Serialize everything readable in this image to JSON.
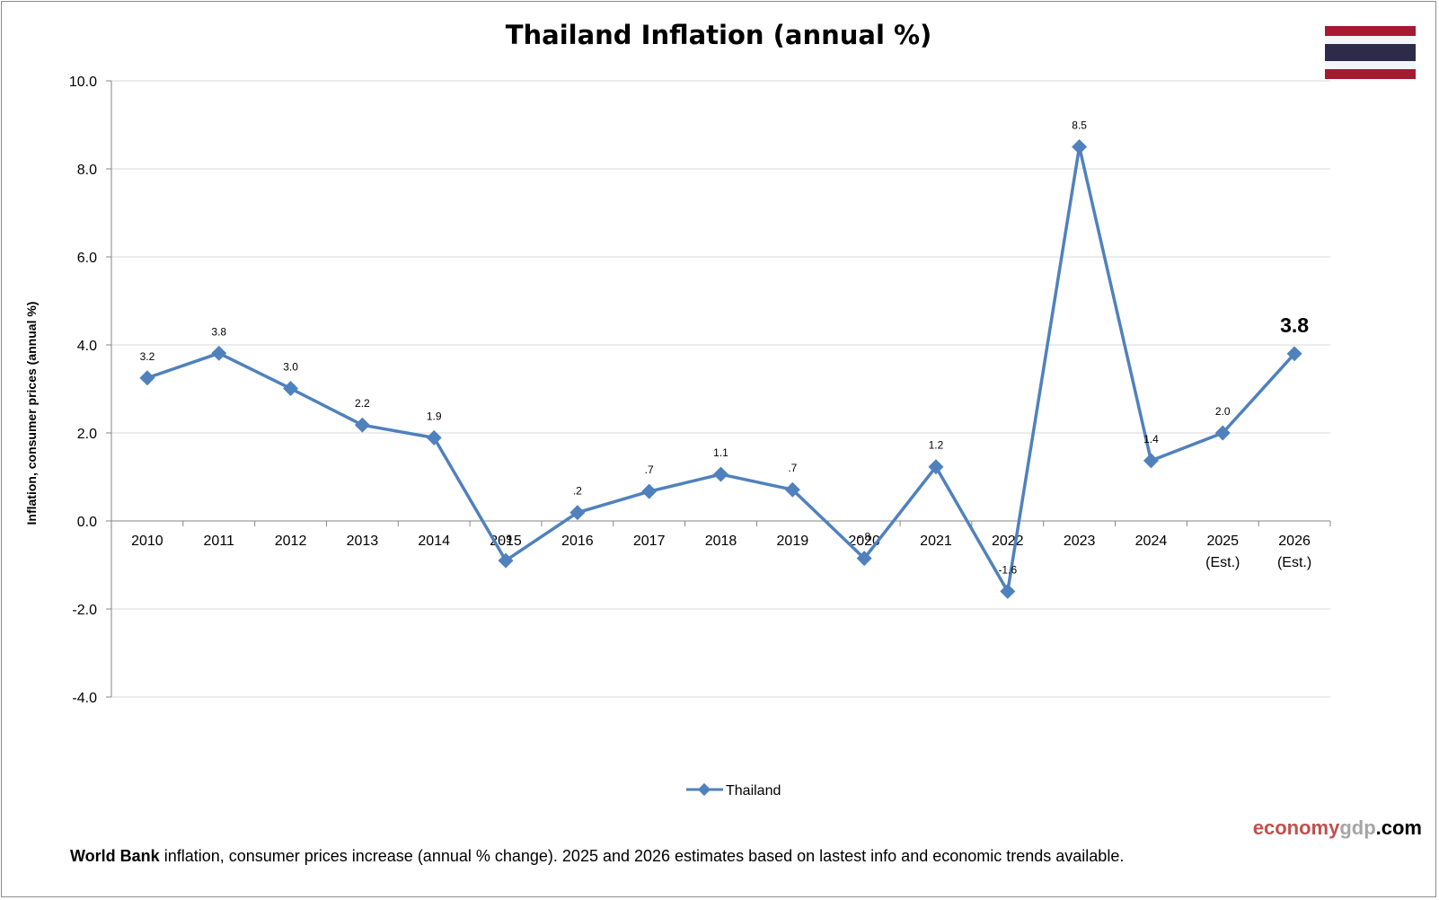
{
  "chart_data": {
    "type": "line",
    "title": "Thailand Inflation (annual %)",
    "ylabel": "Inflation, consumer prices (annual %)",
    "xlabel": "",
    "ylim": [
      -4.0,
      10.0
    ],
    "yticks": [
      "10.0",
      "8.0",
      "6.0",
      "4.0",
      "2.0",
      "0.0",
      "-2.0",
      "-4.0"
    ],
    "ytick_values": [
      10,
      8,
      6,
      4,
      2,
      0,
      -2,
      -4
    ],
    "grid": true,
    "legend_placement": "bottom-center",
    "categories": [
      [
        "2010"
      ],
      [
        "2011"
      ],
      [
        "2012"
      ],
      [
        "2013"
      ],
      [
        "2014"
      ],
      [
        "2015"
      ],
      [
        "2016"
      ],
      [
        "2017"
      ],
      [
        "2018"
      ],
      [
        "2019"
      ],
      [
        "2020"
      ],
      [
        "2021"
      ],
      [
        "2022"
      ],
      [
        "2023"
      ],
      [
        "2024"
      ],
      [
        "2025",
        "(Est.)"
      ],
      [
        "2026",
        "(Est.)"
      ]
    ],
    "series": [
      {
        "name": "Thailand",
        "color": "#4f81bd",
        "values": [
          3.25,
          3.81,
          3.01,
          2.18,
          1.89,
          -0.9,
          0.19,
          0.67,
          1.06,
          0.71,
          -0.85,
          1.23,
          -1.6,
          8.5,
          1.37,
          2.0,
          3.8
        ],
        "labels": [
          "3.2",
          "3.8",
          "3.0",
          "2.2",
          "1.9",
          "-.9",
          ".2",
          ".7",
          "1.1",
          ".7",
          "-.8",
          "1.2",
          "-1.6",
          "8.5",
          "1.4",
          "2.0",
          "3.8"
        ],
        "emphasized_last_label": true
      }
    ]
  },
  "brand": {
    "part1": "economy",
    "part2": "gdp",
    "part3": ".com",
    "color1": "#c0504d",
    "color2": "#a6a6a6",
    "color3": "#000000"
  },
  "footnote": {
    "bold": "World Bank",
    "text": " inflation, consumer prices increase (annual % change).  2025 and 2026 estimates based on lastest info and economic trends available."
  },
  "flag": {
    "icon": "thailand-flag-icon",
    "red": "#a51931",
    "white": "#f4f5f8",
    "blue": "#2d2a4a"
  }
}
